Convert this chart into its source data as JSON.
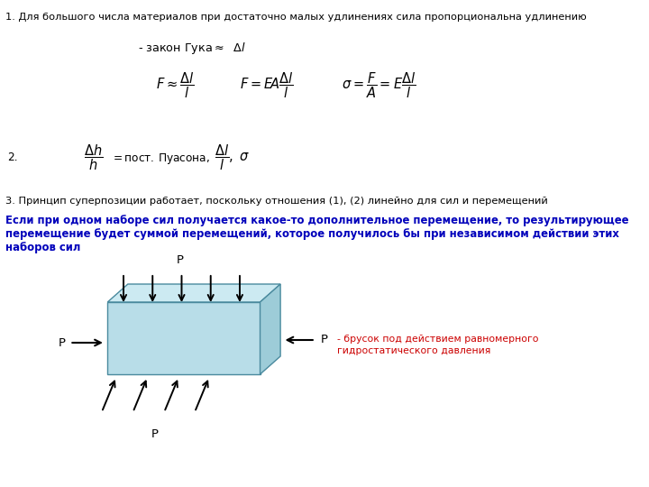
{
  "bg_color": "#ffffff",
  "text_color": "#000000",
  "blue_text_color": "#0000bb",
  "red_text_color": "#cc0000",
  "box_face_front": "#b8dde8",
  "box_face_top": "#cceaf2",
  "box_face_right": "#9dccd8",
  "box_edge": "#4a8a9e",
  "line1": "1. Для большого числа материалов при достаточно малых удлинениях сила пропорциональна удлинению",
  "line3": "3. Принцип суперпозиции работает, поскольку отношения (1), (2) линейно для сил и перемещений",
  "blue_line1": "Если при одном наборе сил получается какое-то дополнительное перемещение, то результирующее",
  "blue_line2": "перемещение будет суммой перемещений, которое получилось бы при независимом действии этих",
  "blue_line3": "наборов сил",
  "red_label1": "- брусок под действием равномерного",
  "red_label2": "гидростатического давления",
  "fig_width": 7.2,
  "fig_height": 5.4,
  "dpi": 100
}
